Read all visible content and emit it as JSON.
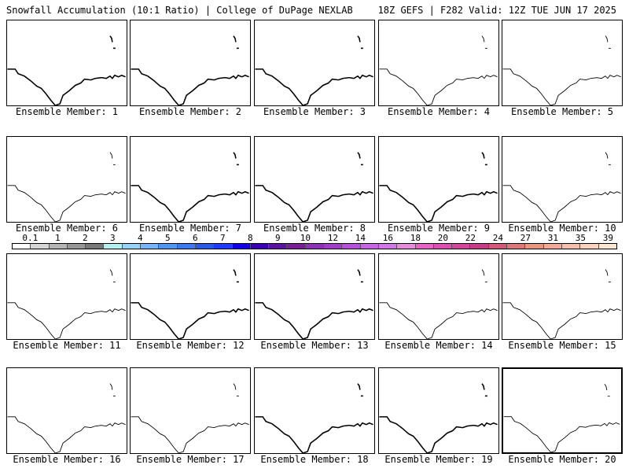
{
  "header": {
    "title": "Snowfall Accumulation (10:1 Ratio) | College of DuPage NEXLAB",
    "run_info": "18Z GEFS | F282 Valid: 12Z TUE JUN 17 2025"
  },
  "panels": [
    {
      "label": "Ensemble Member: 1",
      "style": "bold"
    },
    {
      "label": "Ensemble Member: 2",
      "style": "bold"
    },
    {
      "label": "Ensemble Member: 3",
      "style": "bold"
    },
    {
      "label": "Ensemble Member: 4",
      "style": "thin"
    },
    {
      "label": "Ensemble Member: 5",
      "style": "thin"
    },
    {
      "label": "Ensemble Member: 6",
      "style": "thin"
    },
    {
      "label": "Ensemble Member: 7",
      "style": "bold"
    },
    {
      "label": "Ensemble Member: 8",
      "style": "bold"
    },
    {
      "label": "Ensemble Member: 9",
      "style": "bold"
    },
    {
      "label": "Ensemble Member: 10",
      "style": "thin"
    },
    {
      "label": "Ensemble Member: 11",
      "style": "thin"
    },
    {
      "label": "Ensemble Member: 12",
      "style": "bold"
    },
    {
      "label": "Ensemble Member: 13",
      "style": "bold"
    },
    {
      "label": "Ensemble Member: 14",
      "style": "thin"
    },
    {
      "label": "Ensemble Member: 15",
      "style": "thin"
    },
    {
      "label": "Ensemble Member: 16",
      "style": "thin"
    },
    {
      "label": "Ensemble Member: 17",
      "style": "thin"
    },
    {
      "label": "Ensemble Member: 18",
      "style": "bold"
    },
    {
      "label": "Ensemble Member: 19",
      "style": "bold"
    },
    {
      "label": "Ensemble Member: 20",
      "style": "thin",
      "highlighted": true
    }
  ],
  "legend": {
    "tick_labels": [
      "0.1",
      "1",
      "2",
      "3",
      "4",
      "5",
      "6",
      "7",
      "8",
      "9",
      "10",
      "12",
      "14",
      "16",
      "18",
      "20",
      "22",
      "24",
      "27",
      "31",
      "35",
      "39"
    ],
    "colors": [
      "#ffffff",
      "#d6d6d6",
      "#b4b4b4",
      "#969696",
      "#787878",
      "#b4f0f0",
      "#96d2fa",
      "#78b4fa",
      "#5096f0",
      "#3c78f0",
      "#285ae6",
      "#1e3cff",
      "#1400e6",
      "#3c00b4",
      "#5a14a0",
      "#781e96",
      "#8c32b4",
      "#a03cc8",
      "#b450dc",
      "#c864e6",
      "#d278e6",
      "#e68cdc",
      "#e664c8",
      "#dc50b4",
      "#d2469b",
      "#c83c87",
      "#d25a78",
      "#dc7878",
      "#e6967d",
      "#f0aa96",
      "#f5beaa",
      "#fad2be",
      "#fde6d2"
    ]
  }
}
